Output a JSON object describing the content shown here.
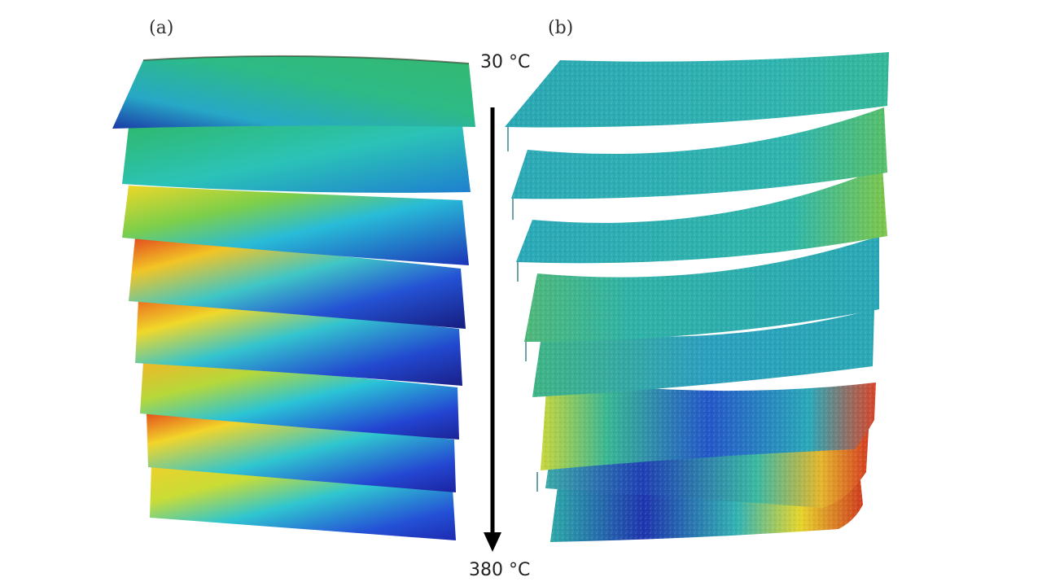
{
  "figure": {
    "panel_a_label": "(a)",
    "panel_b_label": "(b)",
    "temperature_top": "30 °C",
    "temperature_bottom": "380 °C"
  },
  "colors": {
    "arrow": "#000000",
    "colormap": [
      "#1a1ea8",
      "#2a55d6",
      "#27b9d6",
      "#2ec48a",
      "#9bd43b",
      "#f1e22a",
      "#f08a1f",
      "#d9381e"
    ]
  },
  "panel_a_layers": 8,
  "panel_b_layers": 8
}
